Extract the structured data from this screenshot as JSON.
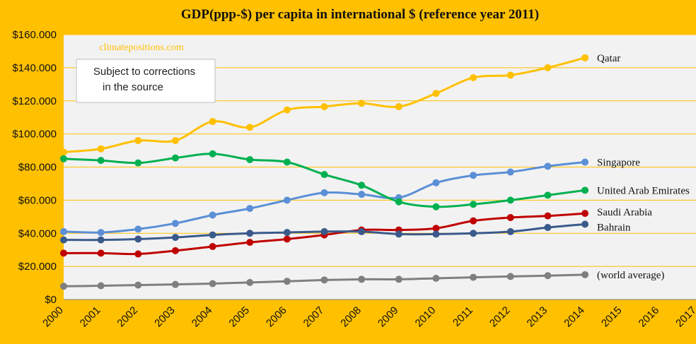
{
  "chart_data": {
    "type": "line",
    "title": "GDP(ppp-$) per capita in international  $ (reference year 2011)",
    "watermark": "climatepositions.com",
    "note": [
      "Subject to corrections",
      "in the source"
    ],
    "x": [
      2000,
      2001,
      2002,
      2003,
      2004,
      2005,
      2006,
      2007,
      2008,
      2009,
      2010,
      2011,
      2012,
      2013,
      2014
    ],
    "x_ticks": [
      "2000",
      "2001",
      "2002",
      "2003",
      "2004",
      "2005",
      "2006",
      "2007",
      "2008",
      "2009",
      "2010",
      "2011",
      "2012",
      "2013",
      "2014",
      "2015",
      "2016",
      "2017"
    ],
    "y_ticks": [
      "$0",
      "$20.000",
      "$40.000",
      "$60.000",
      "$80.000",
      "$100.000",
      "$120.000",
      "$140.000",
      "$160.000"
    ],
    "xlim": [
      2000,
      2017
    ],
    "ylim": [
      0,
      160000
    ],
    "grid": "horizontal",
    "series": [
      {
        "name": "Qatar",
        "color": "#FFC000",
        "values": [
          89000,
          91000,
          96000,
          96000,
          107500,
          104000,
          114500,
          116500,
          118500,
          116500,
          124500,
          134000,
          135500,
          140000,
          146000
        ]
      },
      {
        "name": "Singapore",
        "color": "#5B8FD6",
        "values": [
          41000,
          40500,
          42500,
          46000,
          51000,
          55000,
          60000,
          64500,
          63500,
          61500,
          70500,
          75000,
          77000,
          80500,
          83000
        ]
      },
      {
        "name": "United Arab Emirates",
        "color": "#00B050",
        "values": [
          85000,
          84000,
          82500,
          85500,
          88000,
          84500,
          83000,
          75500,
          69000,
          59000,
          56000,
          57500,
          60000,
          63000,
          66000
        ]
      },
      {
        "name": "Saudi Arabia",
        "color": "#C00000",
        "values": [
          28000,
          28000,
          27500,
          29500,
          32000,
          34500,
          36500,
          39000,
          42000,
          42000,
          43000,
          47500,
          49500,
          50500,
          52000
        ]
      },
      {
        "name": "Bahrain",
        "color": "#3A5A8C",
        "values": [
          36000,
          36000,
          36500,
          37500,
          39000,
          40000,
          40500,
          41000,
          41000,
          39500,
          39500,
          40000,
          41000,
          43500,
          45500
        ]
      },
      {
        "name": "(world average)",
        "color": "#7F7F7F",
        "values": [
          8000,
          8300,
          8700,
          9100,
          9600,
          10300,
          11000,
          11800,
          12200,
          12200,
          12800,
          13400,
          13900,
          14400,
          15000
        ]
      }
    ]
  }
}
